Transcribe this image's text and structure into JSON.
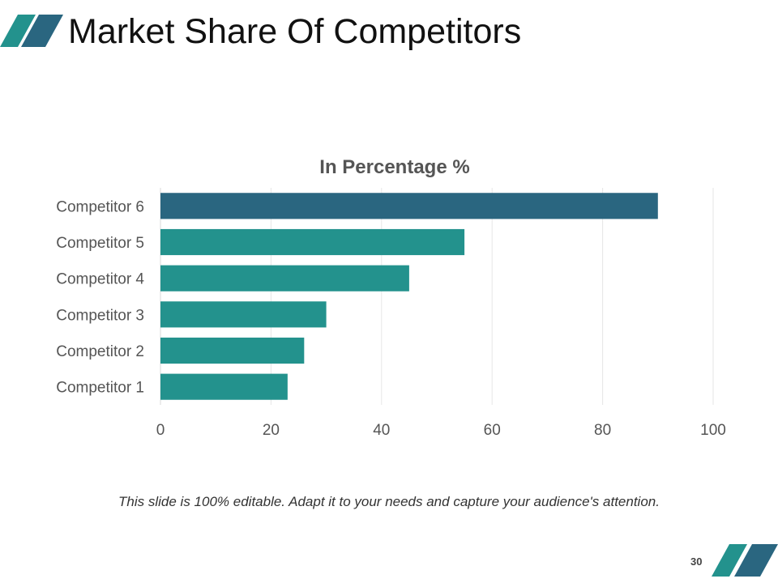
{
  "slide": {
    "title": "Market Share Of Competitors",
    "caption": "This slide is 100% editable. Adapt it to your needs and capture your audience's attention.",
    "page_number": "30"
  },
  "colors": {
    "teal": "#23928d",
    "dark_teal": "#2a6680",
    "title_text": "#111111",
    "axis_text": "#555555",
    "grid": "#e6e6e6"
  },
  "chart_data": {
    "type": "bar",
    "orientation": "horizontal",
    "title": "In Percentage %",
    "xlabel": "",
    "ylabel": "",
    "categories": [
      "Competitor 1",
      "Competitor 2",
      "Competitor 3",
      "Competitor 4",
      "Competitor 5",
      "Competitor 6"
    ],
    "values": [
      23,
      26,
      30,
      45,
      55,
      90
    ],
    "bar_colors": [
      "#23928d",
      "#23928d",
      "#23928d",
      "#23928d",
      "#23928d",
      "#2a6680"
    ],
    "xlim": [
      0,
      100
    ],
    "xticks": [
      0,
      20,
      40,
      60,
      80,
      100
    ],
    "grid": true,
    "legend": "none"
  }
}
